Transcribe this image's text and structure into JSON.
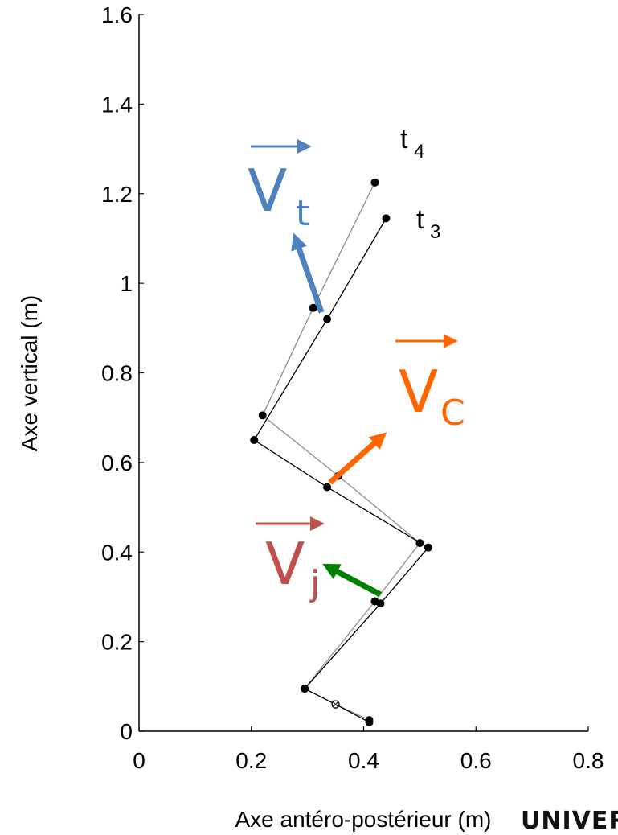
{
  "chart_data": {
    "type": "scatter",
    "xlabel": "Axe antéro-postérieur (m)",
    "ylabel": "Axe vertical (m)",
    "xlim": [
      0,
      0.8
    ],
    "ylim": [
      0,
      1.6
    ],
    "xticks": [
      0,
      0.2,
      0.4,
      0.6,
      0.8
    ],
    "xtick_labels": [
      "0",
      "0.2",
      "0.4",
      "0.6",
      "0.8"
    ],
    "yticks": [
      0,
      0.2,
      0.4,
      0.6,
      0.8,
      1.0,
      1.2,
      1.4,
      1.6
    ],
    "ytick_labels": [
      "0",
      "0.2",
      "0.4",
      "0.6",
      "0.8",
      "1",
      "1.2",
      "1.4",
      "1.6"
    ],
    "grid": false,
    "series": [
      {
        "name": "t4",
        "color": "#8c8c8c",
        "points": [
          [
            0.41,
            0.025
          ],
          [
            0.35,
            0.06
          ],
          [
            0.295,
            0.095
          ],
          [
            0.42,
            0.29
          ],
          [
            0.5,
            0.42
          ],
          [
            0.355,
            0.57
          ],
          [
            0.22,
            0.705
          ],
          [
            0.31,
            0.945
          ],
          [
            0.42,
            1.225
          ]
        ]
      },
      {
        "name": "t3",
        "color": "#000000",
        "points": [
          [
            0.41,
            0.02
          ],
          [
            0.35,
            0.06
          ],
          [
            0.295,
            0.095
          ],
          [
            0.43,
            0.285
          ],
          [
            0.515,
            0.41
          ],
          [
            0.335,
            0.545
          ],
          [
            0.205,
            0.65
          ],
          [
            0.335,
            0.92
          ],
          [
            0.44,
            1.145
          ]
        ]
      }
    ],
    "annotations": [
      {
        "label": "t",
        "sub": "4",
        "x": 0.395,
        "y": 1.35,
        "color": "#000000"
      },
      {
        "label": "t",
        "sub": "3",
        "x": 0.425,
        "y": 1.15,
        "color": "#000000"
      }
    ],
    "vectors": [
      {
        "label": "V",
        "sub": "t",
        "color": "#4f81bd",
        "from": [
          0.325,
          0.935
        ],
        "to": [
          0.28,
          1.095
        ]
      },
      {
        "label": "V",
        "sub": "C",
        "color": "#ff6600",
        "from": [
          0.34,
          0.555
        ],
        "to": [
          0.43,
          0.655
        ]
      },
      {
        "label": "V",
        "sub": "j",
        "color": "#c0504d",
        "from": [
          0.43,
          0.305
        ],
        "to": [
          0.34,
          0.365
        ]
      },
      {
        "label": "",
        "sub": "",
        "color": "#008000",
        "from": [
          0.43,
          0.305
        ],
        "to": [
          0.34,
          0.365
        ]
      }
    ],
    "vector_labels": [
      {
        "label": "V",
        "sub": "t",
        "color": "#4f81bd"
      },
      {
        "label": "V",
        "sub": "C",
        "color": "#ff6600"
      },
      {
        "label": "V",
        "sub": "j",
        "color": "#c0504d"
      }
    ]
  },
  "logo": {
    "text": "UNIVER"
  }
}
